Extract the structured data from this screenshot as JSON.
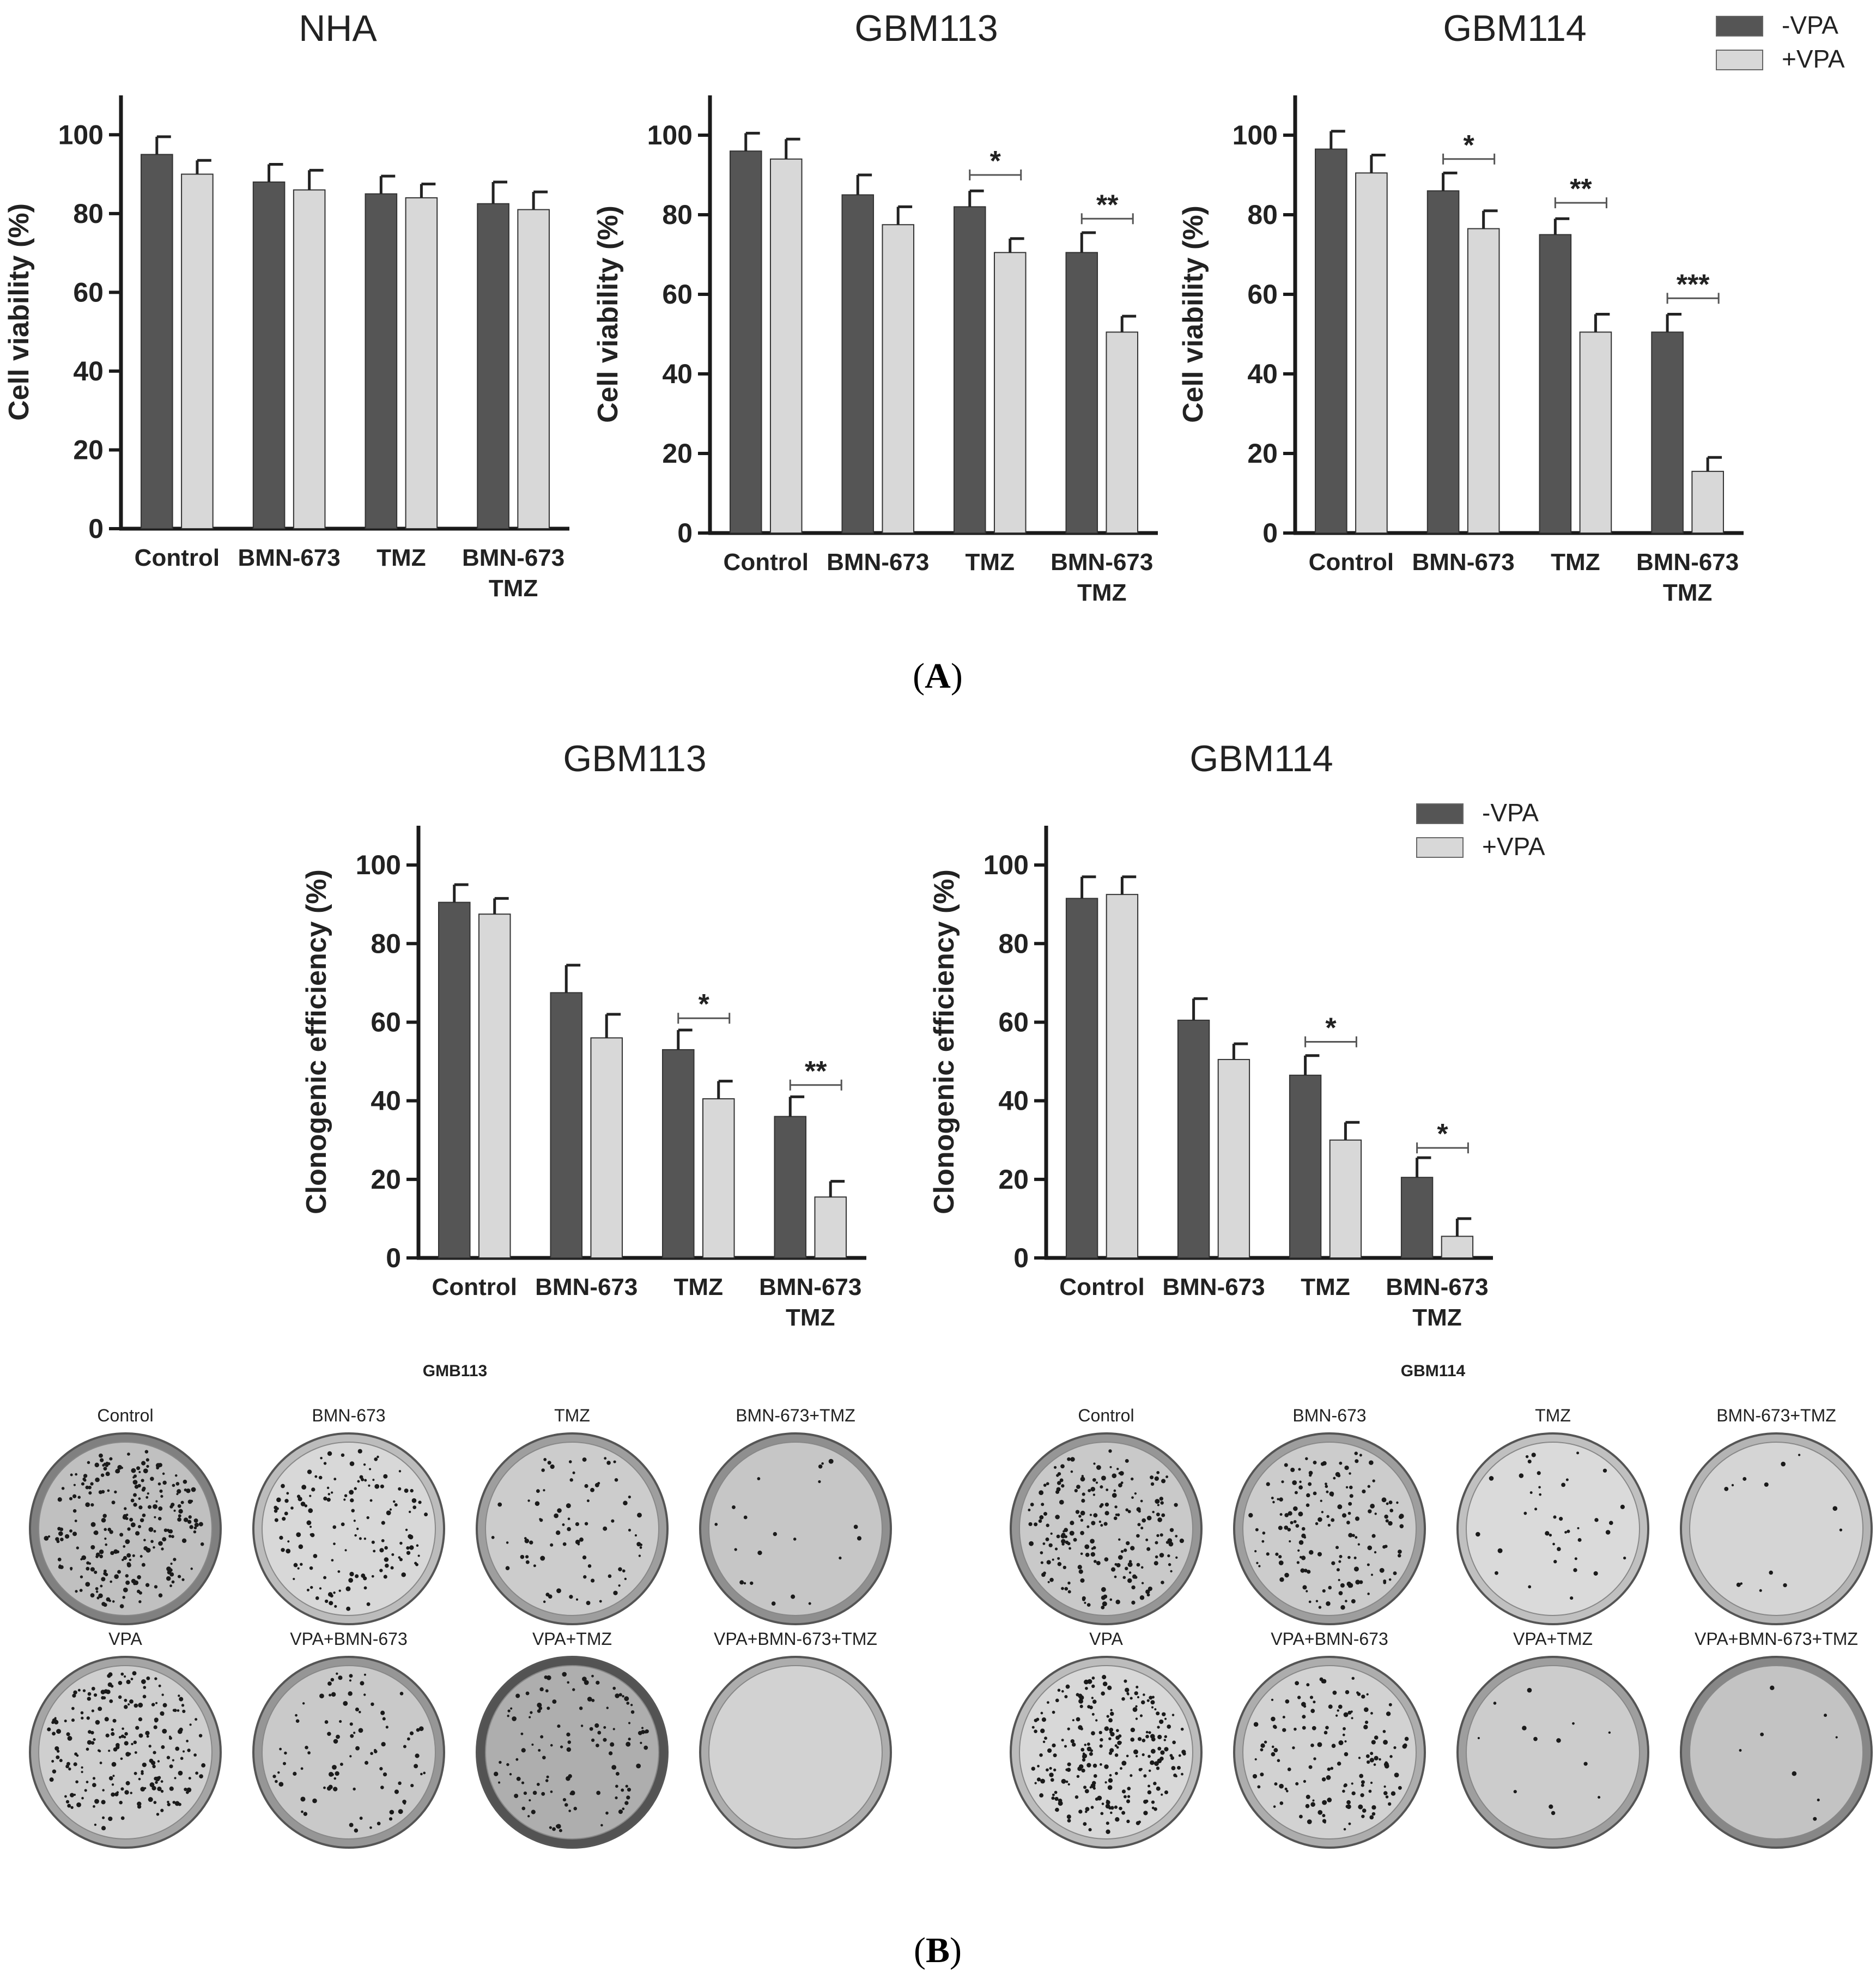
{
  "legend": {
    "minus": "-VPA",
    "plus": "+VPA"
  },
  "colors": {
    "minus": "#555555",
    "plus": "#d8d8d8",
    "axis": "#1a1a1a",
    "dish_rim": "#6a6a6a"
  },
  "panels": {
    "A": {
      "label": "A"
    },
    "B": {
      "label": "B"
    }
  },
  "chart_data": [
    {
      "type": "bar",
      "panel": "A",
      "title": "NHA",
      "ylabel": "Cell viability (%)",
      "ylim": [
        0,
        110
      ],
      "yticks": [
        0,
        20,
        40,
        60,
        80,
        100
      ],
      "categories": [
        [
          "Control"
        ],
        [
          "BMN-673"
        ],
        [
          "TMZ"
        ],
        [
          "BMN-673",
          "TMZ"
        ]
      ],
      "series": [
        {
          "name": "-VPA",
          "values": [
            95,
            88,
            85,
            82.5
          ],
          "errors": [
            4.5,
            4.5,
            4.5,
            5.5
          ]
        },
        {
          "name": "+VPA",
          "values": [
            90,
            86,
            84,
            81
          ],
          "errors": [
            3.5,
            5,
            3.5,
            4.5
          ]
        }
      ],
      "significance": [],
      "legend": false
    },
    {
      "type": "bar",
      "panel": "A",
      "title": "GBM113",
      "ylabel": "Cell viability (%)",
      "ylim": [
        0,
        110
      ],
      "yticks": [
        0,
        20,
        40,
        60,
        80,
        100
      ],
      "categories": [
        [
          "Control"
        ],
        [
          "BMN-673"
        ],
        [
          "TMZ"
        ],
        [
          "BMN-673",
          "TMZ"
        ]
      ],
      "series": [
        {
          "name": "-VPA",
          "values": [
            96,
            85,
            82,
            70.5
          ],
          "errors": [
            4.5,
            5,
            4,
            5
          ]
        },
        {
          "name": "+VPA",
          "values": [
            94,
            77.5,
            70.5,
            50.5
          ],
          "errors": [
            5,
            4.5,
            3.5,
            4
          ]
        }
      ],
      "significance": [
        {
          "category": 2,
          "label": "*",
          "y": 90
        },
        {
          "category": 3,
          "label": "**",
          "y": 79
        }
      ],
      "legend": false
    },
    {
      "type": "bar",
      "panel": "A",
      "title": "GBM114",
      "ylabel": "Cell viability (%)",
      "ylim": [
        0,
        110
      ],
      "yticks": [
        0,
        20,
        40,
        60,
        80,
        100
      ],
      "categories": [
        [
          "Control"
        ],
        [
          "BMN-673"
        ],
        [
          "TMZ"
        ],
        [
          "BMN-673",
          "TMZ"
        ]
      ],
      "series": [
        {
          "name": "-VPA",
          "values": [
            96.5,
            86,
            75,
            50.5
          ],
          "errors": [
            4.5,
            4.5,
            4,
            4.5
          ]
        },
        {
          "name": "+VPA",
          "values": [
            90.5,
            76.5,
            50.5,
            15.5
          ],
          "errors": [
            4.5,
            4.5,
            4.5,
            3.5
          ]
        }
      ],
      "significance": [
        {
          "category": 1,
          "label": "*",
          "y": 94
        },
        {
          "category": 2,
          "label": "**",
          "y": 83
        },
        {
          "category": 3,
          "label": "***",
          "y": 59
        }
      ],
      "legend": true
    },
    {
      "type": "bar",
      "panel": "B",
      "title": "GBM113",
      "ylabel": "Clonogenic efficiency (%)",
      "ylim": [
        0,
        110
      ],
      "yticks": [
        0,
        20,
        40,
        60,
        80,
        100
      ],
      "categories": [
        [
          "Control"
        ],
        [
          "BMN-673"
        ],
        [
          "TMZ"
        ],
        [
          "BMN-673",
          "TMZ"
        ]
      ],
      "series": [
        {
          "name": "-VPA",
          "values": [
            90.5,
            67.5,
            53,
            36
          ],
          "errors": [
            4.5,
            7,
            5,
            5
          ]
        },
        {
          "name": "+VPA",
          "values": [
            87.5,
            56,
            40.5,
            15.5
          ],
          "errors": [
            4,
            6,
            4.5,
            4
          ]
        }
      ],
      "significance": [
        {
          "category": 2,
          "label": "*",
          "y": 61
        },
        {
          "category": 3,
          "label": "**",
          "y": 44
        }
      ],
      "legend": false
    },
    {
      "type": "bar",
      "panel": "B",
      "title": "GBM114",
      "ylabel": "Clonogenic efficiency (%)",
      "ylim": [
        0,
        110
      ],
      "yticks": [
        0,
        20,
        40,
        60,
        80,
        100
      ],
      "categories": [
        [
          "Control"
        ],
        [
          "BMN-673"
        ],
        [
          "TMZ"
        ],
        [
          "BMN-673",
          "TMZ"
        ]
      ],
      "series": [
        {
          "name": "-VPA",
          "values": [
            91.5,
            60.5,
            46.5,
            20.5
          ],
          "errors": [
            5.5,
            5.5,
            5,
            5
          ]
        },
        {
          "name": "+VPA",
          "values": [
            92.5,
            50.5,
            30,
            5.5
          ],
          "errors": [
            4.5,
            4,
            4.5,
            4.5
          ]
        }
      ],
      "significance": [
        {
          "category": 2,
          "label": "*",
          "y": 55
        },
        {
          "category": 3,
          "label": "*",
          "y": 28
        }
      ],
      "legend": true
    }
  ],
  "plates": [
    {
      "title": "GMB113",
      "rows": [
        [
          {
            "label": "Control",
            "density": 0.95,
            "tone": 0.55
          },
          {
            "label": "BMN-673",
            "density": 0.55,
            "tone": 0.15
          },
          {
            "label": "TMZ",
            "density": 0.3,
            "tone": 0.35
          },
          {
            "label": "BMN-673+TMZ",
            "density": 0.08,
            "tone": 0.45
          }
        ],
        [
          {
            "label": "VPA",
            "density": 0.85,
            "tone": 0.3
          },
          {
            "label": "VPA+BMN-673",
            "density": 0.35,
            "tone": 0.4
          },
          {
            "label": "VPA+TMZ",
            "density": 0.45,
            "tone": 0.85
          },
          {
            "label": "VPA+BMN-673+TMZ",
            "density": 0.0,
            "tone": 0.25
          }
        ]
      ]
    },
    {
      "title": "GBM114",
      "rows": [
        [
          {
            "label": "Control",
            "density": 0.8,
            "tone": 0.4
          },
          {
            "label": "BMN-673",
            "density": 0.6,
            "tone": 0.35
          },
          {
            "label": "TMZ",
            "density": 0.15,
            "tone": 0.12
          },
          {
            "label": "BMN-673+TMZ",
            "density": 0.05,
            "tone": 0.2
          }
        ],
        [
          {
            "label": "VPA",
            "density": 0.95,
            "tone": 0.15
          },
          {
            "label": "VPA+BMN-673",
            "density": 0.55,
            "tone": 0.25
          },
          {
            "label": "VPA+TMZ",
            "density": 0.05,
            "tone": 0.35
          },
          {
            "label": "VPA+BMN-673+TMZ",
            "density": 0.03,
            "tone": 0.5
          }
        ]
      ]
    }
  ]
}
